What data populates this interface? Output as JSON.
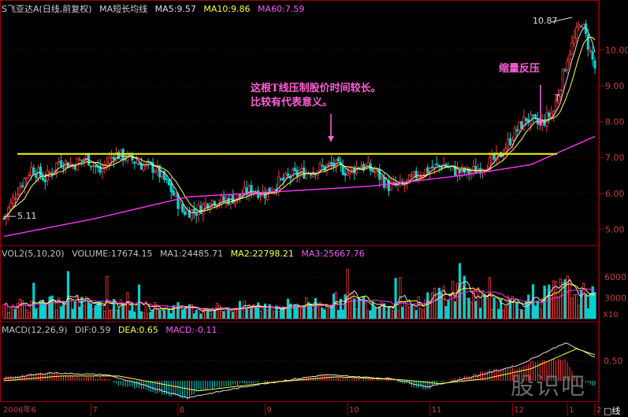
{
  "header": {
    "stock": "S飞亚达A(日线,前复权)",
    "ma_title": "MA短长均线",
    "ma5": "MA5:9.57",
    "ma10": "MA10:9.86",
    "ma60": "MA60:7.59",
    "vol_title": "VOL2(5,10,20)",
    "volume": "VOLUME:17674.15",
    "vma1": "MA1:24485.71",
    "vma2": "MA2:22798.21",
    "vma3": "MA3:25667.76",
    "macd_title": "MACD(12,26,9)",
    "dif": "DIF:0.59",
    "dea": "DEA:0.65",
    "macd": "MACD:-0.11"
  },
  "annotations": {
    "line1": "这根T线压制股价时间较长。",
    "line2": "比较有代表意义。",
    "label2": "缩量反压",
    "high": "10.87",
    "low": "5.11",
    "t_mark": "T"
  },
  "watermark": "股识吧",
  "chart_data": [
    {
      "type": "candlestick",
      "title": "S飞亚达A(日线,前复权)",
      "y_ticks": [
        5.0,
        6.0,
        7.0,
        8.0,
        9.0,
        10.0
      ],
      "ylim": [
        4.7,
        11.0
      ],
      "x_ticks": [
        "2006年6",
        "7",
        "8",
        "9",
        "10",
        "11",
        "12",
        "1",
        "2"
      ],
      "price_path": [
        [
          0,
          5.3
        ],
        [
          6,
          6.1
        ],
        [
          12,
          6.7
        ],
        [
          18,
          6.4
        ],
        [
          24,
          6.9
        ],
        [
          30,
          6.8
        ],
        [
          36,
          7.0
        ],
        [
          42,
          6.6
        ],
        [
          48,
          7.1
        ],
        [
          54,
          7.0
        ],
        [
          60,
          6.8
        ],
        [
          66,
          6.7
        ],
        [
          72,
          6.2
        ],
        [
          78,
          5.5
        ],
        [
          84,
          5.5
        ],
        [
          90,
          5.8
        ],
        [
          96,
          5.8
        ],
        [
          102,
          5.9
        ],
        [
          108,
          6.1
        ],
        [
          114,
          6.0
        ],
        [
          120,
          6.3
        ],
        [
          126,
          6.5
        ],
        [
          132,
          6.6
        ],
        [
          138,
          6.7
        ],
        [
          144,
          6.8
        ],
        [
          150,
          6.6
        ],
        [
          156,
          6.8
        ],
        [
          162,
          6.6
        ],
        [
          168,
          6.2
        ],
        [
          174,
          6.2
        ],
        [
          180,
          6.5
        ],
        [
          186,
          6.7
        ],
        [
          192,
          6.8
        ],
        [
          198,
          6.6
        ],
        [
          204,
          6.6
        ],
        [
          210,
          6.8
        ],
        [
          216,
          7.0
        ],
        [
          222,
          7.6
        ],
        [
          228,
          8.1
        ],
        [
          234,
          7.9
        ],
        [
          240,
          8.3
        ],
        [
          246,
          9.8
        ],
        [
          252,
          10.8
        ],
        [
          258,
          9.5
        ]
      ],
      "resistance": 7.1,
      "ma60_path": [
        [
          0,
          4.8
        ],
        [
          40,
          5.3
        ],
        [
          80,
          5.9
        ],
        [
          120,
          6.05
        ],
        [
          160,
          6.2
        ],
        [
          200,
          6.5
        ],
        [
          230,
          6.8
        ],
        [
          258,
          7.59
        ]
      ]
    },
    {
      "type": "bar",
      "title": "VOL2(5,10,20)",
      "y_ticks": [
        3000,
        6000
      ],
      "ylim": [
        0,
        8500
      ],
      "x10_label": "X10",
      "vol_path": [
        [
          0,
          1800
        ],
        [
          30,
          2300
        ],
        [
          60,
          1600
        ],
        [
          90,
          1500
        ],
        [
          120,
          1800
        ],
        [
          150,
          2600
        ],
        [
          180,
          1900
        ],
        [
          195,
          4200
        ],
        [
          210,
          2600
        ],
        [
          230,
          2400
        ],
        [
          245,
          4300
        ],
        [
          258,
          2900
        ]
      ]
    },
    {
      "type": "bar",
      "title": "MACD(12,26,9)",
      "y_ticks": [
        0.5
      ],
      "ylim": [
        -0.55,
        1.1
      ],
      "dif_path": [
        [
          0,
          0.05
        ],
        [
          20,
          0.2
        ],
        [
          45,
          0.15
        ],
        [
          80,
          -0.42
        ],
        [
          110,
          -0.1
        ],
        [
          140,
          0.15
        ],
        [
          170,
          0.05
        ],
        [
          185,
          -0.15
        ],
        [
          205,
          0.1
        ],
        [
          225,
          0.4
        ],
        [
          245,
          0.95
        ],
        [
          258,
          0.59
        ]
      ],
      "dea_path": [
        [
          0,
          0.0
        ],
        [
          25,
          0.12
        ],
        [
          50,
          0.12
        ],
        [
          85,
          -0.25
        ],
        [
          115,
          -0.05
        ],
        [
          145,
          0.1
        ],
        [
          175,
          0.02
        ],
        [
          190,
          -0.07
        ],
        [
          210,
          0.05
        ],
        [
          230,
          0.3
        ],
        [
          250,
          0.8
        ],
        [
          258,
          0.65
        ]
      ]
    }
  ],
  "bottom_label": "□线"
}
